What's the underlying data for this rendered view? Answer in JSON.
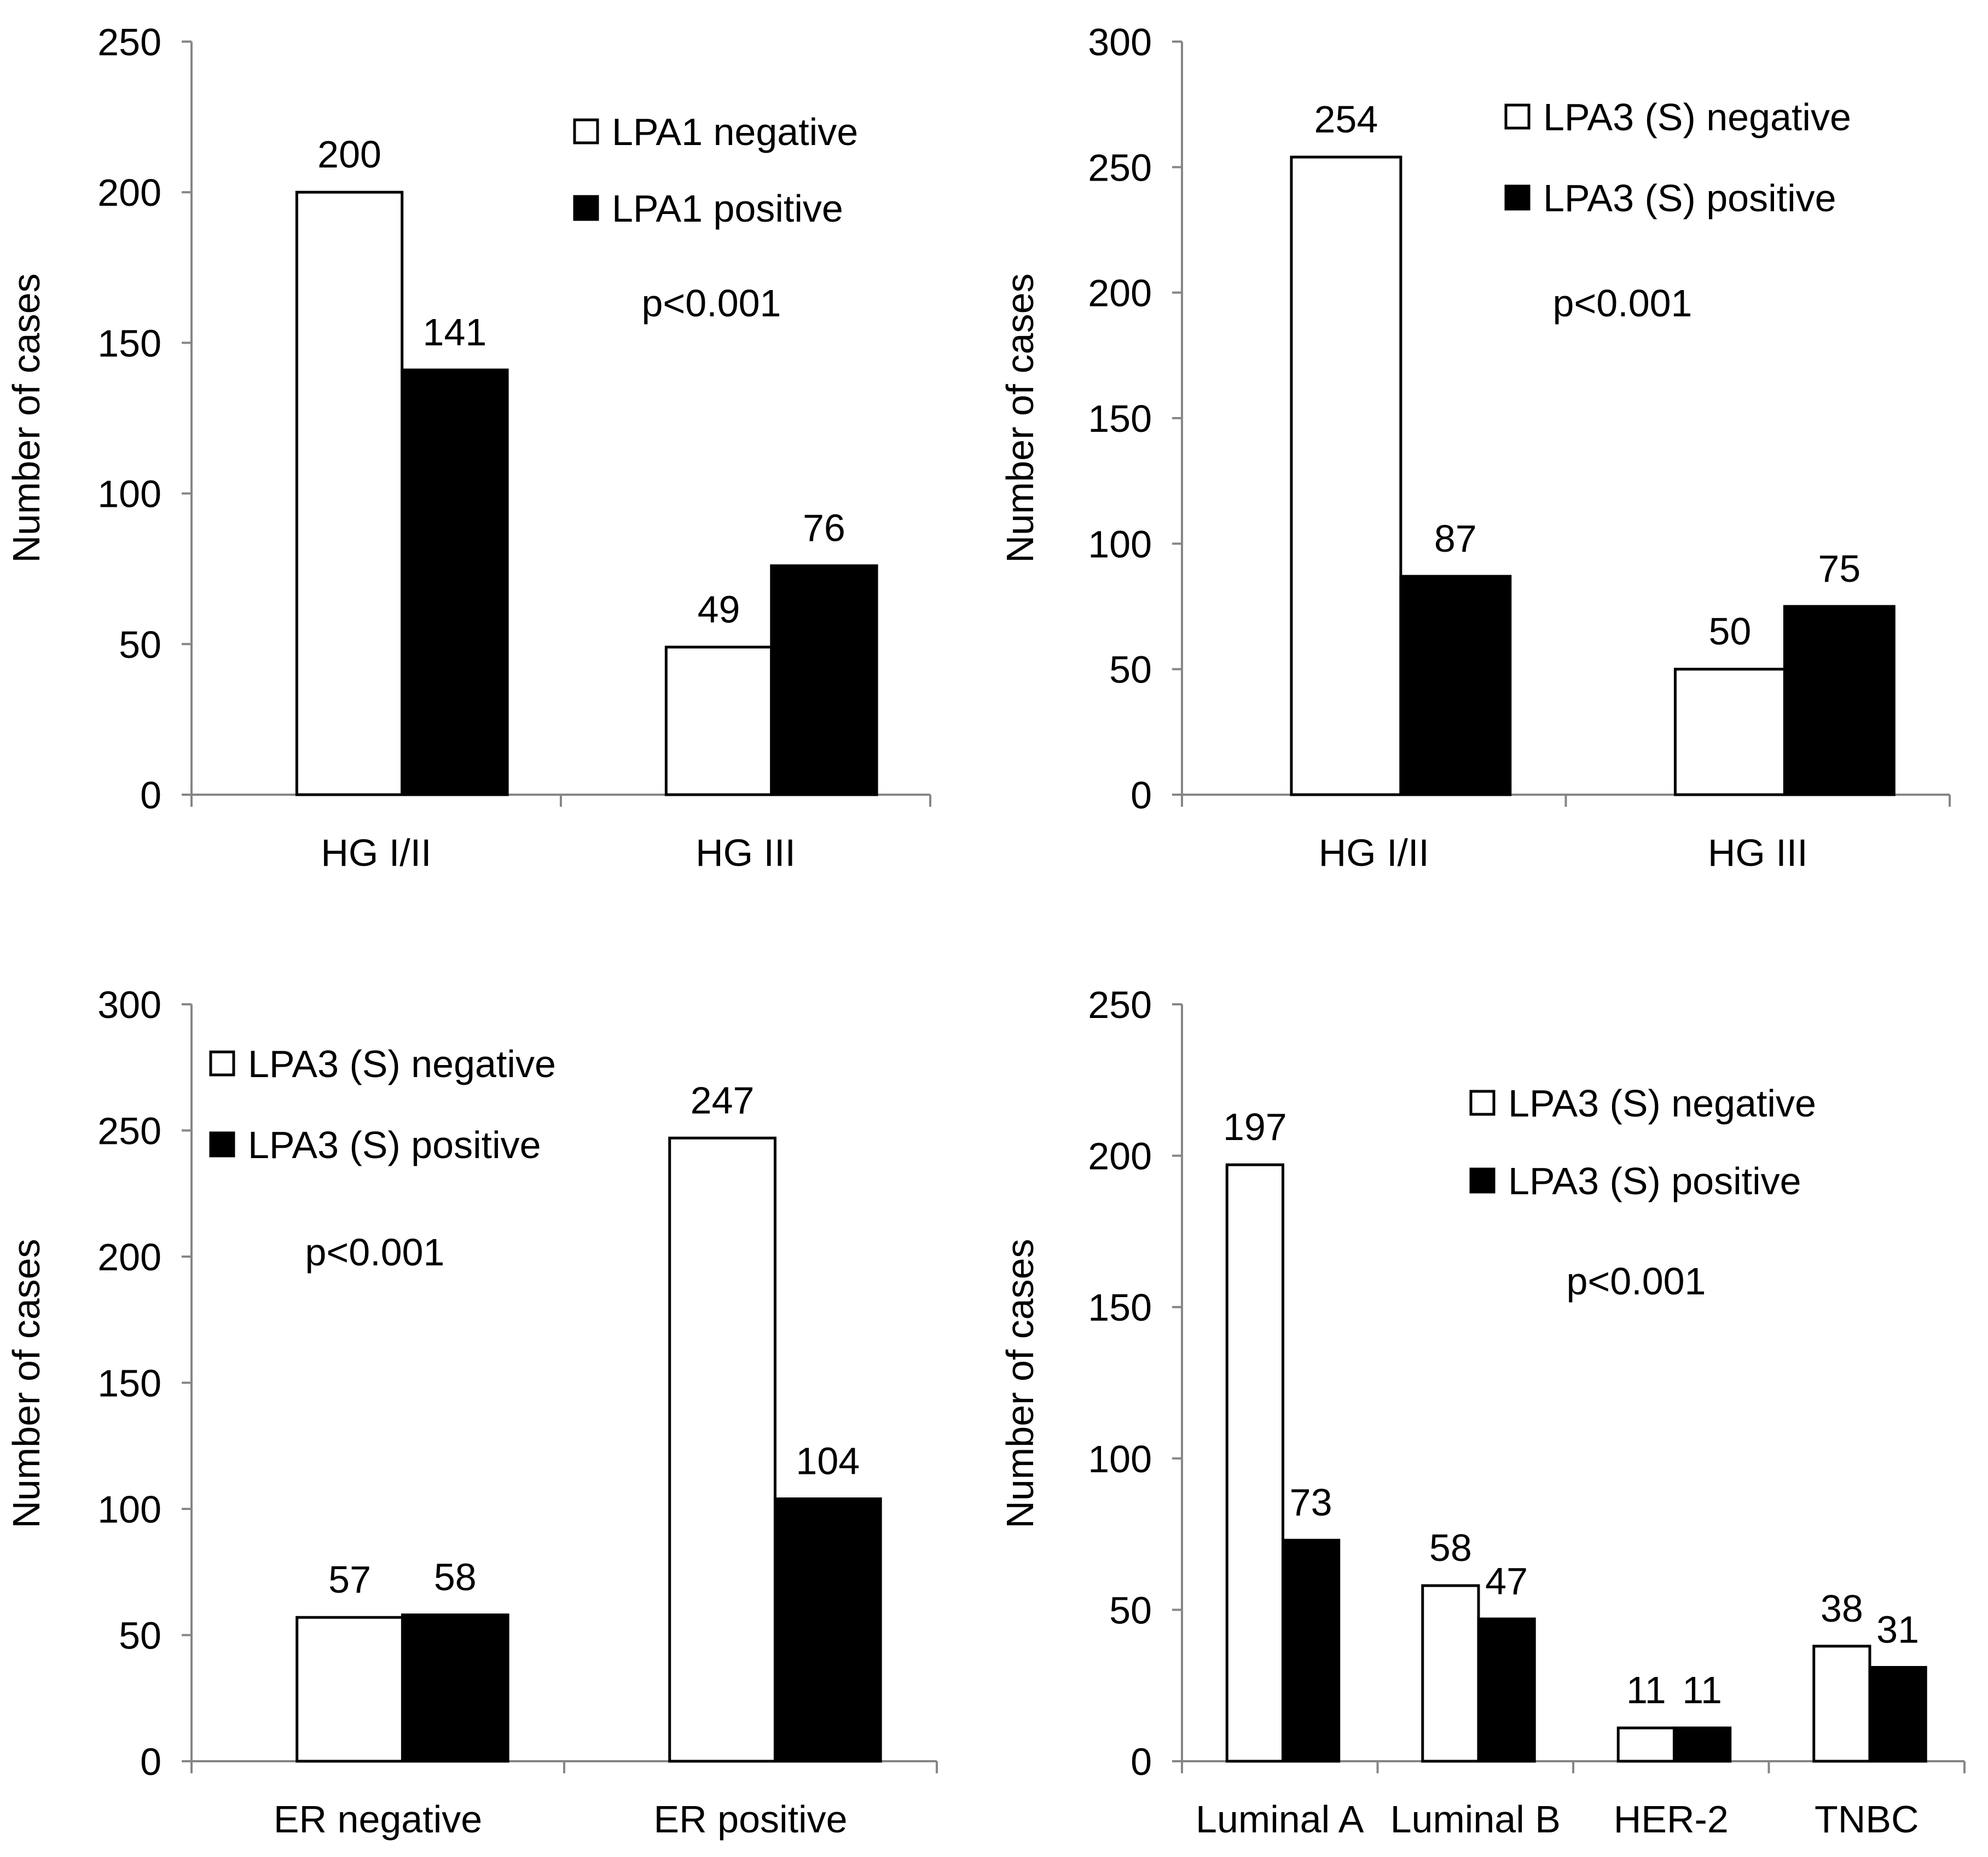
{
  "colors": {
    "negative_fill": "#ffffff",
    "positive_fill": "#000000",
    "stroke": "#000000",
    "axis": "#868686"
  },
  "chart_data": [
    {
      "type": "bar",
      "categories": [
        "HG I/II",
        "HG III"
      ],
      "series": [
        {
          "name": "LPA1 negative",
          "values": [
            200,
            49
          ]
        },
        {
          "name": "LPA1 positive",
          "values": [
            141,
            76
          ]
        }
      ],
      "ylabel": "Number of cases",
      "ylim": [
        0,
        250
      ],
      "yticks": [
        0,
        50,
        100,
        150,
        200,
        250
      ],
      "annotation": "p<0.001",
      "legend": "top-right"
    },
    {
      "type": "bar",
      "categories": [
        "HG I/II",
        "HG III"
      ],
      "series": [
        {
          "name": "LPA3 (S) negative",
          "values": [
            254,
            50
          ]
        },
        {
          "name": "LPA3 (S) positive",
          "values": [
            87,
            75
          ]
        }
      ],
      "ylabel": "Number of cases",
      "ylim": [
        0,
        300
      ],
      "yticks": [
        0,
        50,
        100,
        150,
        200,
        250,
        300
      ],
      "annotation": "p<0.001",
      "legend": "top-right"
    },
    {
      "type": "bar",
      "categories": [
        "ER negative",
        "ER positive"
      ],
      "series": [
        {
          "name": "LPA3 (S) negative",
          "values": [
            57,
            247
          ]
        },
        {
          "name": "LPA3 (S) positive",
          "values": [
            58,
            104
          ]
        }
      ],
      "ylabel": "Number of cases",
      "ylim": [
        0,
        300
      ],
      "yticks": [
        0,
        50,
        100,
        150,
        200,
        250,
        300
      ],
      "annotation": "p<0.001",
      "legend": "top-left"
    },
    {
      "type": "bar",
      "categories": [
        "Luminal A",
        "Luminal B",
        "HER-2",
        "TNBC"
      ],
      "series": [
        {
          "name": "LPA3 (S) negative",
          "values": [
            197,
            58,
            11,
            38
          ]
        },
        {
          "name": "LPA3 (S) positive",
          "values": [
            73,
            47,
            11,
            31
          ]
        }
      ],
      "ylabel": "Number of cases",
      "ylim": [
        0,
        250
      ],
      "yticks": [
        0,
        50,
        100,
        150,
        200,
        250
      ],
      "annotation": "p<0.001",
      "legend": "top-right"
    }
  ]
}
